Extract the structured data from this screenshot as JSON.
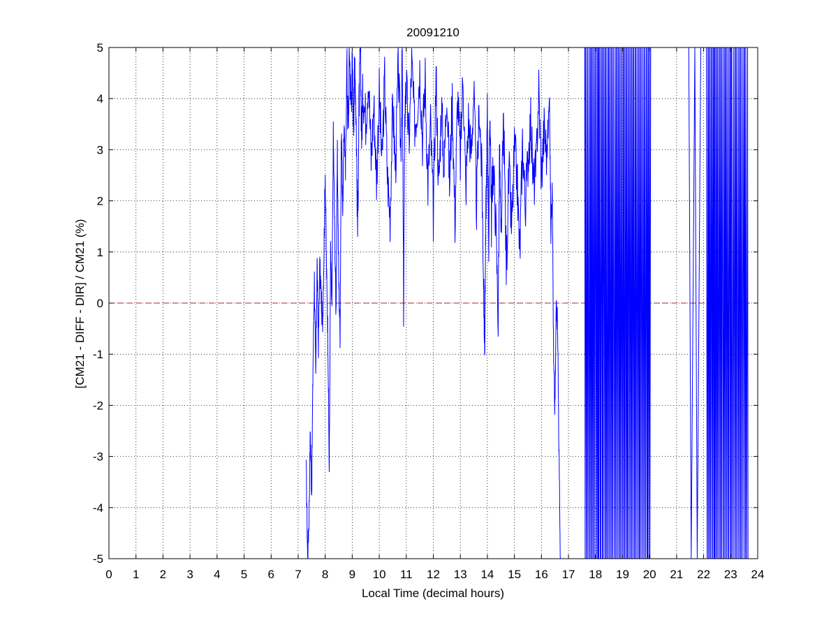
{
  "chart_data": {
    "type": "line",
    "title": "20091210",
    "xlabel": "Local Time (decimal hours)",
    "ylabel": "[CM21 - DIFF - DIR] / CM21 (%)",
    "xlim": [
      0,
      24
    ],
    "ylim": [
      -5,
      5
    ],
    "x_ticks": [
      "0",
      "1",
      "2",
      "3",
      "4",
      "5",
      "6",
      "7",
      "8",
      "9",
      "10",
      "11",
      "12",
      "13",
      "14",
      "15",
      "16",
      "17",
      "18",
      "19",
      "20",
      "21",
      "22",
      "23",
      "24"
    ],
    "y_ticks": [
      "5",
      "4",
      "3",
      "2",
      "1",
      "0",
      "-1",
      "-2",
      "-3",
      "-4",
      "-5"
    ],
    "grid": true,
    "reference_line": {
      "y": 0,
      "style": "dashed",
      "color": "#b22222"
    },
    "colors": {
      "series": "#0000ff",
      "axes": "#000000",
      "grid": "#000000"
    },
    "series": [
      {
        "color": "#0000ff",
        "x": [
          7.3,
          7.35,
          7.4,
          7.45,
          7.5,
          7.55,
          7.6,
          7.65,
          7.7,
          7.75,
          7.8,
          7.85,
          7.9,
          7.95,
          8.0,
          8.05,
          8.1,
          8.15,
          8.2,
          8.25,
          8.3,
          8.35,
          8.4,
          8.45,
          8.5,
          8.55,
          8.6,
          8.65,
          8.7,
          8.75,
          8.8,
          8.85,
          8.9,
          8.95,
          9.0,
          9.05,
          9.1,
          9.15,
          9.2,
          9.25,
          9.3,
          9.35,
          9.4,
          9.5,
          9.6,
          9.7,
          9.8,
          9.9,
          10.0,
          10.1,
          10.2,
          10.3,
          10.4,
          10.5,
          10.6,
          10.7,
          10.8,
          10.85,
          10.9,
          10.95,
          11.0,
          11.1,
          11.2,
          11.3,
          11.4,
          11.5,
          11.6,
          11.7,
          11.8,
          11.9,
          12.0,
          12.1,
          12.2,
          12.3,
          12.4,
          12.5,
          12.6,
          12.7,
          12.8,
          12.9,
          13.0,
          13.1,
          13.2,
          13.3,
          13.4,
          13.5,
          13.6,
          13.7,
          13.8,
          13.85,
          13.9,
          13.95,
          14.0,
          14.05,
          14.1,
          14.15,
          14.2,
          14.3,
          14.4,
          14.45,
          14.5,
          14.6,
          14.7,
          14.8,
          14.9,
          15.0,
          15.1,
          15.2,
          15.3,
          15.4,
          15.5,
          15.6,
          15.7,
          15.8,
          15.9,
          16.0,
          16.1,
          16.2,
          16.3,
          16.35,
          16.4,
          16.45,
          16.5,
          16.55,
          16.6,
          16.65,
          16.7
        ],
        "y": [
          -3.3,
          -5.0,
          -4.2,
          -2.5,
          -3.7,
          -1.2,
          0.5,
          -1.5,
          0.8,
          -0.8,
          0.7,
          0.2,
          -0.5,
          0.9,
          2.6,
          0.6,
          -0.6,
          -3.3,
          1.0,
          -0.2,
          3.3,
          1.5,
          -0.2,
          2.9,
          0.5,
          -0.6,
          3.4,
          1.8,
          3.6,
          2.5,
          4.7,
          3.3,
          5.0,
          3.9,
          4.6,
          3.6,
          4.8,
          3.5,
          1.4,
          3.8,
          4.9,
          3.3,
          4.2,
          3.6,
          4.5,
          2.8,
          3.9,
          2.4,
          4.1,
          2.7,
          4.4,
          2.5,
          1.7,
          3.9,
          2.6,
          4.6,
          3.0,
          4.9,
          0.0,
          3.8,
          4.3,
          3.1,
          4.7,
          3.5,
          3.8,
          4.6,
          3.2,
          4.4,
          2.3,
          3.5,
          1.7,
          4.5,
          2.2,
          3.9,
          2.6,
          4.3,
          2.3,
          4.0,
          1.6,
          4.1,
          2.8,
          4.5,
          2.2,
          3.6,
          2.9,
          4.2,
          1.9,
          3.9,
          2.4,
          0.8,
          -0.9,
          1.9,
          3.7,
          1.2,
          3.9,
          1.6,
          2.7,
          1.8,
          -0.3,
          3.0,
          1.1,
          3.6,
          0.7,
          2.6,
          1.4,
          3.0,
          2.4,
          0.9,
          3.2,
          1.9,
          2.8,
          3.6,
          2.3,
          2.6,
          4.2,
          2.5,
          3.4,
          2.9,
          4.0,
          1.4,
          2.5,
          -1.2,
          -2.1,
          0.1,
          -0.4,
          -3.0,
          -5.0
        ],
        "bursts": [
          {
            "x_range": [
              17.6,
              20.05
            ],
            "y_range": [
              -5,
              5
            ],
            "note": "dense vertical spikes spanning full range"
          },
          {
            "x_range": [
              21.45,
              21.9
            ],
            "y_range": [
              -5,
              5
            ],
            "note": "sparse spikes"
          },
          {
            "x_range": [
              22.1,
              23.65
            ],
            "y_range": [
              -5,
              5
            ],
            "note": "dense vertical spikes spanning full range"
          }
        ]
      }
    ]
  }
}
